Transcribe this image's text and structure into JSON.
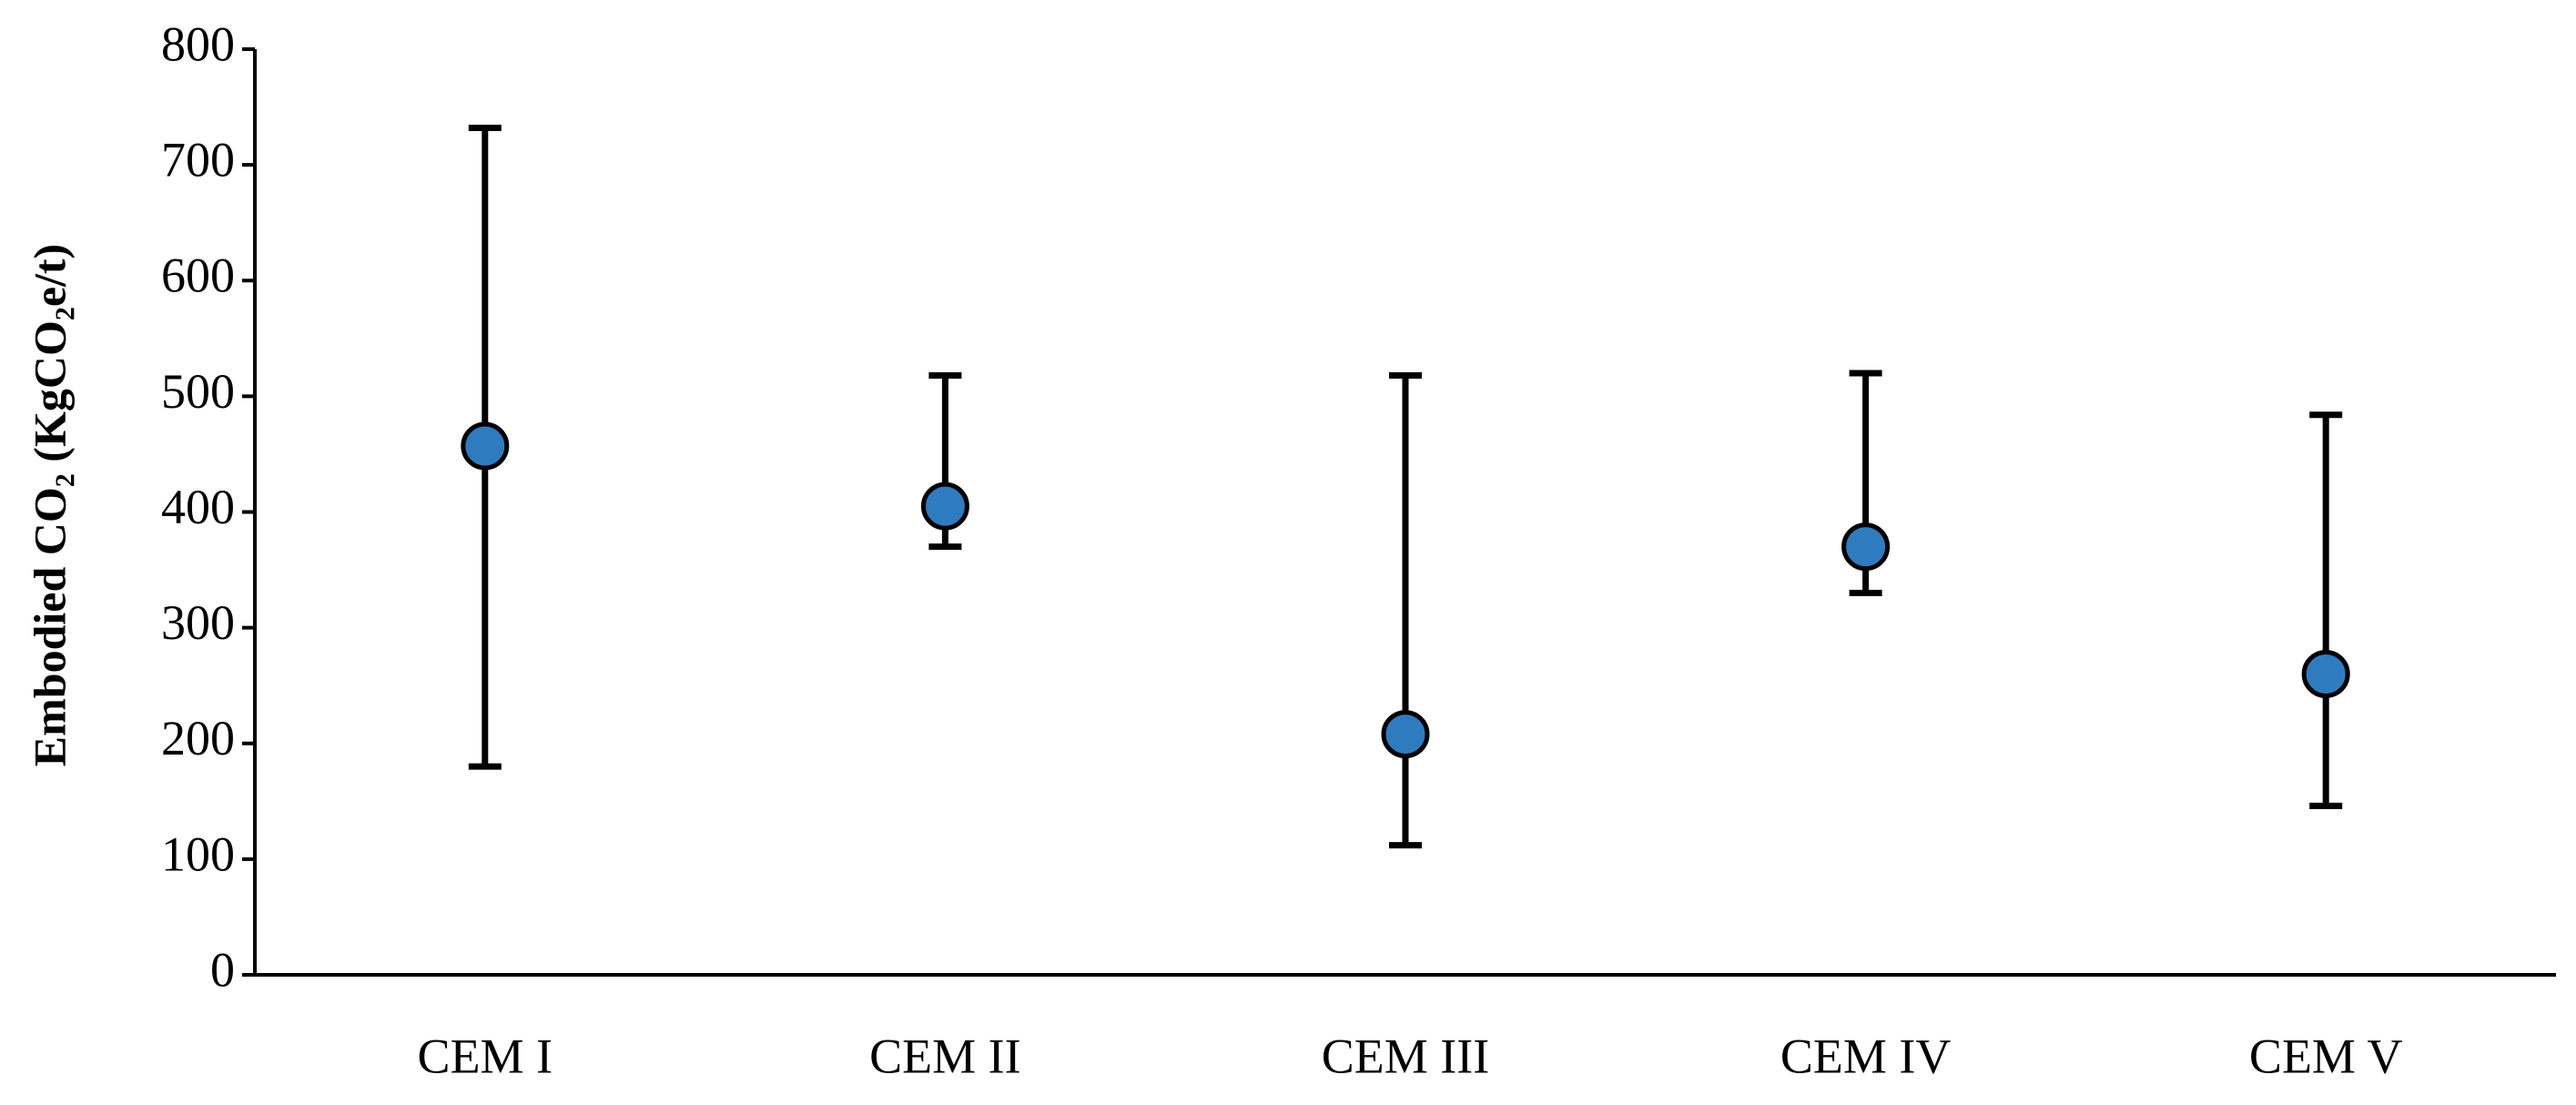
{
  "chart_data": {
    "type": "dot-range",
    "y_label": "Embodied CO₂ (KgCO₂e/t)",
    "categories": [
      "CEM I",
      "CEM II",
      "CEM III",
      "CEM IV",
      "CEM V"
    ],
    "values": [
      457,
      405,
      208,
      370,
      260
    ],
    "error_low": [
      180,
      370,
      112,
      330,
      146
    ],
    "error_high": [
      732,
      518,
      518,
      520,
      484
    ],
    "color": "#2e7cbf",
    "ylim": [
      0,
      800
    ],
    "yticks": [
      0,
      100,
      200,
      300,
      400,
      500,
      600,
      700,
      800
    ],
    "grid": false
  }
}
